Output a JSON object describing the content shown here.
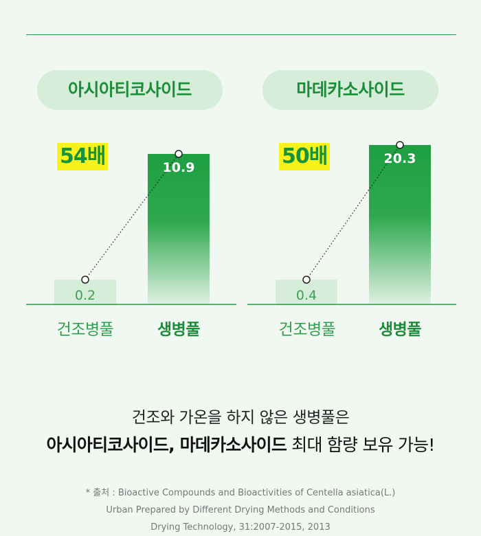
{
  "chart_data": [
    {
      "type": "bar",
      "title": "아시아티코사이드",
      "categories": [
        "건조병풀",
        "생병풀"
      ],
      "values": [
        0.2,
        10.9
      ],
      "value_labels": [
        "0.2",
        "10.9"
      ],
      "annotation": "54배",
      "colors": {
        "dried": "#d6edda",
        "fresh": "#1e9f42"
      }
    },
    {
      "type": "bar",
      "title": "마데카소사이드",
      "categories": [
        "건조병풀",
        "생병풀"
      ],
      "values": [
        0.4,
        20.3
      ],
      "value_labels": [
        "0.4",
        "20.3"
      ],
      "annotation": "50배",
      "colors": {
        "dried": "#d6edda",
        "fresh": "#1e9f42"
      }
    }
  ],
  "headline": {
    "line1": "건조와 가온을 하지 않은 생병풀은",
    "line2_strong": "아시아티코사이드, 마데카소사이드",
    "line2_rest": " 최대 함량 보유 가능!"
  },
  "source": {
    "line1": "* 출처 : Bioactive Compounds and Bioactivities of Centella asiatica(L.)",
    "line2": "Urban Prepared by Different Drying Methods and Conditions",
    "line3": "Drying Technology, 31:2007-2015, 2013"
  },
  "colors": {
    "accent": "#1a8c3a",
    "badge": "#f7f21c",
    "background": "#f1f8f1"
  }
}
